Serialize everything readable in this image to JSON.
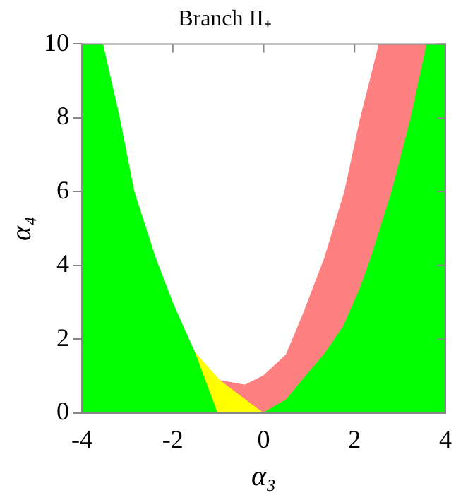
{
  "chart_data": {
    "type": "area",
    "title": "Branch II₊",
    "xlabel": "α₃",
    "ylabel": "α₄",
    "xlim": [
      -4,
      4
    ],
    "xticks": [
      -4,
      -2,
      0,
      2,
      4
    ],
    "ylim": [
      0,
      10
    ],
    "yticks": [
      0,
      2,
      4,
      6,
      8,
      10
    ],
    "grid": false,
    "legend": false,
    "series": [
      {
        "color": "#ff8080",
        "x": [
          -0.97,
          -0.41,
          0,
          0.5,
          0.9,
          1.35,
          1.79,
          2.14,
          2.55,
          4
        ],
        "values": [
          0.87,
          0.75,
          1.0,
          1.57,
          2.75,
          4.2,
          6,
          8,
          10,
          10
        ]
      },
      {
        "color": "#ffff00",
        "x": [
          -1.53,
          -0.97,
          -0.03
        ],
        "values": [
          1.65,
          0.87,
          0
        ]
      },
      {
        "color": "#00ff00",
        "x": [
          -4,
          -3.55,
          -3.18,
          -2.86,
          -2.39,
          -2.0,
          -1.53,
          -1.03
        ],
        "values": [
          10,
          10,
          8,
          6,
          4.2,
          2.95,
          1.65,
          0
        ]
      },
      {
        "color": "#00ff00",
        "x": [
          0,
          0.5,
          0.9,
          1.35,
          1.77,
          2.14,
          2.37,
          2.83,
          3.25,
          3.6,
          4
        ],
        "values": [
          0,
          0.35,
          0.95,
          1.6,
          2.36,
          3.4,
          4.2,
          6,
          8,
          10,
          10
        ]
      }
    ]
  }
}
